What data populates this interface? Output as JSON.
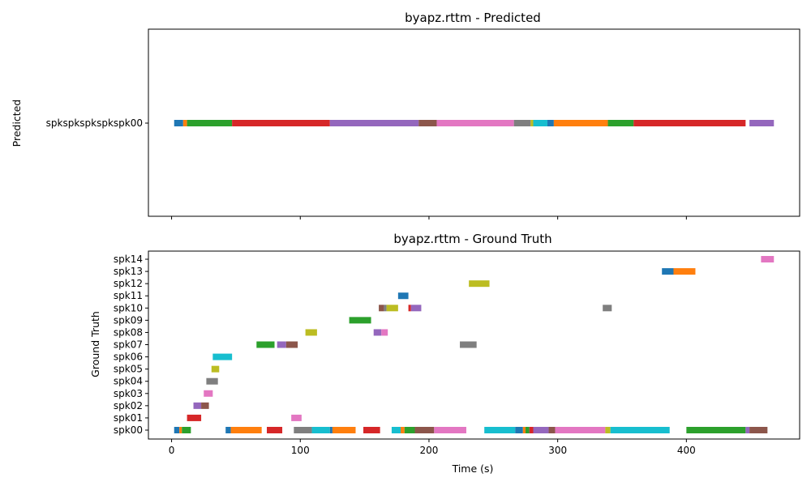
{
  "chart_data": [
    {
      "type": "timeline",
      "title": "byapz.rttm - Predicted",
      "xlabel": "",
      "ylabel": "Predicted",
      "xlim": [
        -18,
        488
      ],
      "categories": [
        "spkspkspkspkspk00"
      ],
      "segments": [
        {
          "cat": 0,
          "start": 2,
          "end": 9,
          "color": "#1f77b4"
        },
        {
          "cat": 0,
          "start": 9,
          "end": 12,
          "color": "#ff7f0e"
        },
        {
          "cat": 0,
          "start": 12,
          "end": 47,
          "color": "#2ca02c"
        },
        {
          "cat": 0,
          "start": 47,
          "end": 123,
          "color": "#d62728"
        },
        {
          "cat": 0,
          "start": 123,
          "end": 192,
          "color": "#9467bd"
        },
        {
          "cat": 0,
          "start": 192,
          "end": 206,
          "color": "#8c564b"
        },
        {
          "cat": 0,
          "start": 206,
          "end": 266,
          "color": "#e377c2"
        },
        {
          "cat": 0,
          "start": 266,
          "end": 279,
          "color": "#7f7f7f"
        },
        {
          "cat": 0,
          "start": 279,
          "end": 281,
          "color": "#bcbd22"
        },
        {
          "cat": 0,
          "start": 281,
          "end": 292,
          "color": "#17becf"
        },
        {
          "cat": 0,
          "start": 292,
          "end": 297,
          "color": "#1f77b4"
        },
        {
          "cat": 0,
          "start": 297,
          "end": 339,
          "color": "#ff7f0e"
        },
        {
          "cat": 0,
          "start": 339,
          "end": 359,
          "color": "#2ca02c"
        },
        {
          "cat": 0,
          "start": 359,
          "end": 446,
          "color": "#d62728"
        },
        {
          "cat": 0,
          "start": 449,
          "end": 468,
          "color": "#9467bd"
        }
      ],
      "xticks": [
        0,
        100,
        200,
        300,
        400
      ],
      "show_xtick_labels": false,
      "grid": false
    },
    {
      "type": "timeline",
      "title": "byapz.rttm - Ground Truth",
      "xlabel": "Time (s)",
      "ylabel": "Ground Truth",
      "xlim": [
        -18,
        488
      ],
      "categories": [
        "spk00",
        "spk01",
        "spk02",
        "spk03",
        "spk04",
        "spk05",
        "spk06",
        "spk07",
        "spk08",
        "spk09",
        "spk10",
        "spk11",
        "spk12",
        "spk13",
        "spk14"
      ],
      "segments": [
        {
          "cat": 0,
          "start": 2,
          "end": 6,
          "color": "#1f77b4"
        },
        {
          "cat": 0,
          "start": 6,
          "end": 8,
          "color": "#ff7f0e"
        },
        {
          "cat": 0,
          "start": 8,
          "end": 15,
          "color": "#2ca02c"
        },
        {
          "cat": 0,
          "start": 42,
          "end": 46,
          "color": "#1f77b4"
        },
        {
          "cat": 0,
          "start": 46,
          "end": 70,
          "color": "#ff7f0e"
        },
        {
          "cat": 0,
          "start": 74,
          "end": 86,
          "color": "#d62728"
        },
        {
          "cat": 0,
          "start": 95,
          "end": 109,
          "color": "#7f7f7f"
        },
        {
          "cat": 0,
          "start": 109,
          "end": 123,
          "color": "#17becf"
        },
        {
          "cat": 0,
          "start": 123,
          "end": 125,
          "color": "#1f77b4"
        },
        {
          "cat": 0,
          "start": 125,
          "end": 143,
          "color": "#ff7f0e"
        },
        {
          "cat": 0,
          "start": 149,
          "end": 162,
          "color": "#d62728"
        },
        {
          "cat": 0,
          "start": 171,
          "end": 178,
          "color": "#17becf"
        },
        {
          "cat": 0,
          "start": 178,
          "end": 181,
          "color": "#ff7f0e"
        },
        {
          "cat": 0,
          "start": 181,
          "end": 189,
          "color": "#2ca02c"
        },
        {
          "cat": 0,
          "start": 189,
          "end": 204,
          "color": "#8c564b"
        },
        {
          "cat": 0,
          "start": 204,
          "end": 229,
          "color": "#e377c2"
        },
        {
          "cat": 0,
          "start": 243,
          "end": 267,
          "color": "#17becf"
        },
        {
          "cat": 0,
          "start": 267,
          "end": 273,
          "color": "#1f77b4"
        },
        {
          "cat": 0,
          "start": 273,
          "end": 275,
          "color": "#ff7f0e"
        },
        {
          "cat": 0,
          "start": 275,
          "end": 278,
          "color": "#2ca02c"
        },
        {
          "cat": 0,
          "start": 278,
          "end": 281,
          "color": "#d62728"
        },
        {
          "cat": 0,
          "start": 281,
          "end": 293,
          "color": "#9467bd"
        },
        {
          "cat": 0,
          "start": 293,
          "end": 298,
          "color": "#8c564b"
        },
        {
          "cat": 0,
          "start": 298,
          "end": 337,
          "color": "#e377c2"
        },
        {
          "cat": 0,
          "start": 337,
          "end": 341,
          "color": "#bcbd22"
        },
        {
          "cat": 0,
          "start": 341,
          "end": 387,
          "color": "#17becf"
        },
        {
          "cat": 0,
          "start": 400,
          "end": 446,
          "color": "#2ca02c"
        },
        {
          "cat": 0,
          "start": 446,
          "end": 449,
          "color": "#9467bd"
        },
        {
          "cat": 0,
          "start": 449,
          "end": 463,
          "color": "#8c564b"
        },
        {
          "cat": 1,
          "start": 12,
          "end": 23,
          "color": "#d62728"
        },
        {
          "cat": 1,
          "start": 93,
          "end": 101,
          "color": "#e377c2"
        },
        {
          "cat": 2,
          "start": 17,
          "end": 23,
          "color": "#9467bd"
        },
        {
          "cat": 2,
          "start": 23,
          "end": 29,
          "color": "#8c564b"
        },
        {
          "cat": 3,
          "start": 25,
          "end": 32,
          "color": "#e377c2"
        },
        {
          "cat": 4,
          "start": 27,
          "end": 36,
          "color": "#7f7f7f"
        },
        {
          "cat": 5,
          "start": 31,
          "end": 37,
          "color": "#bcbd22"
        },
        {
          "cat": 6,
          "start": 32,
          "end": 47,
          "color": "#17becf"
        },
        {
          "cat": 7,
          "start": 66,
          "end": 80,
          "color": "#2ca02c"
        },
        {
          "cat": 7,
          "start": 82,
          "end": 89,
          "color": "#9467bd"
        },
        {
          "cat": 7,
          "start": 89,
          "end": 98,
          "color": "#8c564b"
        },
        {
          "cat": 7,
          "start": 224,
          "end": 237,
          "color": "#7f7f7f"
        },
        {
          "cat": 8,
          "start": 104,
          "end": 113,
          "color": "#bcbd22"
        },
        {
          "cat": 8,
          "start": 157,
          "end": 163,
          "color": "#9467bd"
        },
        {
          "cat": 8,
          "start": 163,
          "end": 168,
          "color": "#e377c2"
        },
        {
          "cat": 9,
          "start": 138,
          "end": 155,
          "color": "#2ca02c"
        },
        {
          "cat": 10,
          "start": 161,
          "end": 165,
          "color": "#8c564b"
        },
        {
          "cat": 10,
          "start": 165,
          "end": 167,
          "color": "#7f7f7f"
        },
        {
          "cat": 10,
          "start": 167,
          "end": 176,
          "color": "#bcbd22"
        },
        {
          "cat": 10,
          "start": 184,
          "end": 186,
          "color": "#d62728"
        },
        {
          "cat": 10,
          "start": 186,
          "end": 194,
          "color": "#9467bd"
        },
        {
          "cat": 10,
          "start": 335,
          "end": 342,
          "color": "#7f7f7f"
        },
        {
          "cat": 11,
          "start": 176,
          "end": 184,
          "color": "#1f77b4"
        },
        {
          "cat": 12,
          "start": 231,
          "end": 247,
          "color": "#bcbd22"
        },
        {
          "cat": 13,
          "start": 381,
          "end": 390,
          "color": "#1f77b4"
        },
        {
          "cat": 13,
          "start": 390,
          "end": 407,
          "color": "#ff7f0e"
        },
        {
          "cat": 14,
          "start": 458,
          "end": 468,
          "color": "#e377c2"
        }
      ],
      "xticks": [
        0,
        100,
        200,
        300,
        400
      ],
      "show_xtick_labels": true,
      "grid": false
    }
  ]
}
